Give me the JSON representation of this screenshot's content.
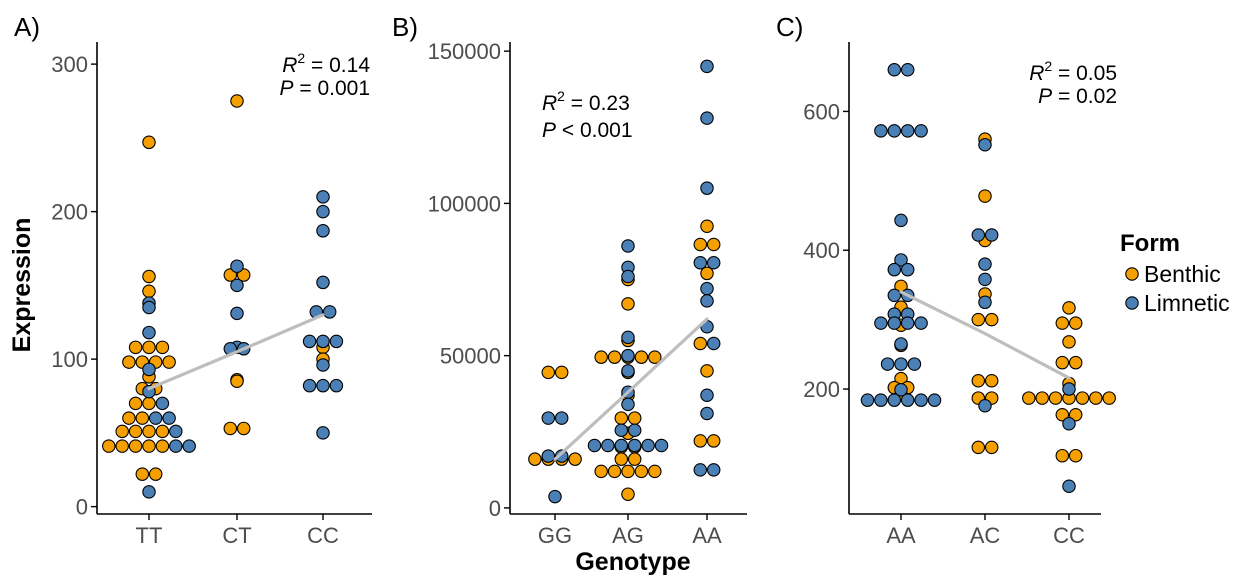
{
  "colors": {
    "Benthic": "#F5A000",
    "Limnetic": "#4A80B5",
    "trend": "#BEBEBE",
    "axis": "#000000",
    "point_stroke": "#000000"
  },
  "ylabel": "Expression",
  "xlabel": "Genotype",
  "legend": {
    "title": "Form",
    "items": [
      {
        "label": "Benthic",
        "form": "Benthic"
      },
      {
        "label": "Limnetic",
        "form": "Limnetic"
      }
    ],
    "position": "right"
  },
  "chart_data": [
    {
      "type": "scatter",
      "panel": "A)",
      "categories": [
        "TT",
        "CT",
        "CC"
      ],
      "ylim": [
        -5,
        315
      ],
      "yticks": [
        0,
        100,
        200,
        300
      ],
      "annotation": {
        "r2_label": "R",
        "r2_sup": "2",
        "r2_value": " = 0.14",
        "p_label": "P",
        "p_value": " = 0.001"
      },
      "trend": [
        {
          "x": "TT",
          "y": 80
        },
        {
          "x": "CT",
          "y": 105
        },
        {
          "x": "CC",
          "y": 130
        }
      ],
      "series": [
        {
          "name": "Benthic",
          "points": [
            [
              "TT",
              247
            ],
            [
              "TT",
              156
            ],
            [
              "TT",
              146
            ],
            [
              "TT",
              108
            ],
            [
              "TT",
              108
            ],
            [
              "TT",
              108
            ],
            [
              "TT",
              98
            ],
            [
              "TT",
              98
            ],
            [
              "TT",
              98
            ],
            [
              "TT",
              98
            ],
            [
              "TT",
              88
            ],
            [
              "TT",
              80
            ],
            [
              "TT",
              80
            ],
            [
              "TT",
              70
            ],
            [
              "TT",
              70
            ],
            [
              "TT",
              60
            ],
            [
              "TT",
              60
            ],
            [
              "TT",
              51
            ],
            [
              "TT",
              51
            ],
            [
              "TT",
              51
            ],
            [
              "TT",
              51
            ],
            [
              "TT",
              41
            ],
            [
              "TT",
              41
            ],
            [
              "TT",
              41
            ],
            [
              "TT",
              41
            ],
            [
              "TT",
              41
            ],
            [
              "TT",
              22
            ],
            [
              "TT",
              22
            ],
            [
              "CT",
              275
            ],
            [
              "CT",
              157
            ],
            [
              "CT",
              157
            ],
            [
              "CT",
              86
            ],
            [
              "CT",
              85
            ],
            [
              "CT",
              53
            ],
            [
              "CT",
              53
            ],
            [
              "CC",
              108
            ],
            [
              "CC",
              100
            ]
          ]
        },
        {
          "name": "Limnetic",
          "points": [
            [
              "TT",
              138
            ],
            [
              "TT",
              135
            ],
            [
              "TT",
              118
            ],
            [
              "TT",
              93
            ],
            [
              "TT",
              78
            ],
            [
              "TT",
              70
            ],
            [
              "TT",
              60
            ],
            [
              "TT",
              60
            ],
            [
              "TT",
              51
            ],
            [
              "TT",
              41
            ],
            [
              "TT",
              41
            ],
            [
              "TT",
              10
            ],
            [
              "CT",
              163
            ],
            [
              "CT",
              150
            ],
            [
              "CT",
              131
            ],
            [
              "CT",
              108
            ],
            [
              "CT",
              107
            ],
            [
              "CT",
              107
            ],
            [
              "CC",
              210
            ],
            [
              "CC",
              200
            ],
            [
              "CC",
              187
            ],
            [
              "CC",
              152
            ],
            [
              "CC",
              132
            ],
            [
              "CC",
              132
            ],
            [
              "CC",
              112
            ],
            [
              "CC",
              112
            ],
            [
              "CC",
              112
            ],
            [
              "CC",
              96
            ],
            [
              "CC",
              82
            ],
            [
              "CC",
              82
            ],
            [
              "CC",
              82
            ],
            [
              "CC",
              50
            ]
          ]
        }
      ]
    },
    {
      "type": "scatter",
      "panel": "B)",
      "categories": [
        "GG",
        "AG",
        "AA"
      ],
      "ylim": [
        -2000,
        153000
      ],
      "yticks": [
        0,
        50000,
        100000,
        150000
      ],
      "annotation": {
        "r2_label": "R",
        "r2_sup": "2",
        "r2_value": " = 0.23",
        "p_label": "P",
        "p_value": " < 0.001"
      },
      "trend": [
        {
          "x": "GG",
          "y": 16000
        },
        {
          "x": "AG",
          "y": 38000
        },
        {
          "x": "AA",
          "y": 62000
        }
      ],
      "series": [
        {
          "name": "Benthic",
          "points": [
            [
              "GG",
              44500
            ],
            [
              "GG",
              44500
            ],
            [
              "GG",
              16000
            ],
            [
              "GG",
              16000
            ],
            [
              "GG",
              16000
            ],
            [
              "GG",
              16000
            ],
            [
              "AG",
              75000
            ],
            [
              "AG",
              67000
            ],
            [
              "AG",
              55000
            ],
            [
              "AG",
              49500
            ],
            [
              "AG",
              49500
            ],
            [
              "AG",
              49500
            ],
            [
              "AG",
              49500
            ],
            [
              "AG",
              49500
            ],
            [
              "AG",
              44500
            ],
            [
              "AG",
              37000
            ],
            [
              "AG",
              29500
            ],
            [
              "AG",
              29500
            ],
            [
              "AG",
              24500
            ],
            [
              "AG",
              20000
            ],
            [
              "AG",
              20000
            ],
            [
              "AG",
              16000
            ],
            [
              "AG",
              16000
            ],
            [
              "AG",
              12000
            ],
            [
              "AG",
              12000
            ],
            [
              "AG",
              12000
            ],
            [
              "AG",
              12000
            ],
            [
              "AG",
              12000
            ],
            [
              "AG",
              4500
            ],
            [
              "AA",
              92500
            ],
            [
              "AA",
              86500
            ],
            [
              "AA",
              86500
            ],
            [
              "AA",
              77000
            ],
            [
              "AA",
              54000
            ],
            [
              "AA",
              45000
            ],
            [
              "AA",
              22000
            ],
            [
              "AA",
              22000
            ]
          ]
        },
        {
          "name": "Limnetic",
          "points": [
            [
              "GG",
              29500
            ],
            [
              "GG",
              29500
            ],
            [
              "GG",
              17000
            ],
            [
              "GG",
              17000
            ],
            [
              "GG",
              3700
            ],
            [
              "AG",
              86000
            ],
            [
              "AG",
              79000
            ],
            [
              "AG",
              76000
            ],
            [
              "AG",
              56000
            ],
            [
              "AG",
              50000
            ],
            [
              "AG",
              45000
            ],
            [
              "AG",
              38000
            ],
            [
              "AG",
              34000
            ],
            [
              "AG",
              25500
            ],
            [
              "AG",
              25500
            ],
            [
              "AG",
              20500
            ],
            [
              "AG",
              20500
            ],
            [
              "AG",
              20500
            ],
            [
              "AG",
              20500
            ],
            [
              "AG",
              20500
            ],
            [
              "AG",
              20500
            ],
            [
              "AA",
              145000
            ],
            [
              "AA",
              128000
            ],
            [
              "AA",
              105000
            ],
            [
              "AA",
              80500
            ],
            [
              "AA",
              80500
            ],
            [
              "AA",
              72000
            ],
            [
              "AA",
              68000
            ],
            [
              "AA",
              59500
            ],
            [
              "AA",
              54000
            ],
            [
              "AA",
              37000
            ],
            [
              "AA",
              31000
            ],
            [
              "AA",
              12500
            ],
            [
              "AA",
              12500
            ]
          ]
        }
      ]
    },
    {
      "type": "scatter",
      "panel": "C)",
      "categories": [
        "AA",
        "AC",
        "CC"
      ],
      "ylim": [
        20,
        700
      ],
      "yticks": [
        200,
        400,
        600
      ],
      "annotation": {
        "r2_label": "R",
        "r2_sup": "2",
        "r2_value": " = 0.05",
        "p_label": "P",
        "p_value": " = 0.02"
      },
      "trend": [
        {
          "x": "AA",
          "y": 340
        },
        {
          "x": "AC",
          "y": 280
        },
        {
          "x": "CC",
          "y": 216
        }
      ],
      "series": [
        {
          "name": "Benthic",
          "points": [
            [
              "AA",
              348
            ],
            [
              "AA",
              318
            ],
            [
              "AA",
              292
            ],
            [
              "AA",
              263
            ],
            [
              "AA",
              215
            ],
            [
              "AA",
              202
            ],
            [
              "AA",
              202
            ],
            [
              "AA",
              192
            ],
            [
              "AC",
              560
            ],
            [
              "AC",
              478
            ],
            [
              "AC",
              414
            ],
            [
              "AC",
              337
            ],
            [
              "AC",
              300
            ],
            [
              "AC",
              300
            ],
            [
              "AC",
              212
            ],
            [
              "AC",
              212
            ],
            [
              "AC",
              187
            ],
            [
              "AC",
              187
            ],
            [
              "AC",
              116
            ],
            [
              "AC",
              116
            ],
            [
              "CC",
              317
            ],
            [
              "CC",
              295
            ],
            [
              "CC",
              295
            ],
            [
              "CC",
              268
            ],
            [
              "CC",
              238
            ],
            [
              "CC",
              238
            ],
            [
              "CC",
              208
            ],
            [
              "CC",
              187
            ],
            [
              "CC",
              187
            ],
            [
              "CC",
              187
            ],
            [
              "CC",
              187
            ],
            [
              "CC",
              187
            ],
            [
              "CC",
              187
            ],
            [
              "CC",
              187
            ],
            [
              "CC",
              163
            ],
            [
              "CC",
              163
            ],
            [
              "CC",
              104
            ],
            [
              "CC",
              104
            ]
          ]
        },
        {
          "name": "Limnetic",
          "points": [
            [
              "AA",
              660
            ],
            [
              "AA",
              660
            ],
            [
              "AA",
              572
            ],
            [
              "AA",
              572
            ],
            [
              "AA",
              572
            ],
            [
              "AA",
              572
            ],
            [
              "AA",
              443
            ],
            [
              "AA",
              386
            ],
            [
              "AA",
              372
            ],
            [
              "AA",
              372
            ],
            [
              "AA",
              335
            ],
            [
              "AA",
              335
            ],
            [
              "AA",
              308
            ],
            [
              "AA",
              308
            ],
            [
              "AA",
              295
            ],
            [
              "AA",
              295
            ],
            [
              "AA",
              295
            ],
            [
              "AA",
              295
            ],
            [
              "AA",
              265
            ],
            [
              "AA",
              236
            ],
            [
              "AA",
              236
            ],
            [
              "AA",
              236
            ],
            [
              "AA",
              199
            ],
            [
              "AA",
              184
            ],
            [
              "AA",
              184
            ],
            [
              "AA",
              184
            ],
            [
              "AA",
              184
            ],
            [
              "AA",
              184
            ],
            [
              "AA",
              184
            ],
            [
              "AC",
              552
            ],
            [
              "AC",
              422
            ],
            [
              "AC",
              422
            ],
            [
              "AC",
              380
            ],
            [
              "AC",
              358
            ],
            [
              "AC",
              325
            ],
            [
              "AC",
              176
            ],
            [
              "CC",
              200
            ],
            [
              "CC",
              150
            ],
            [
              "CC",
              60
            ]
          ]
        }
      ]
    }
  ]
}
